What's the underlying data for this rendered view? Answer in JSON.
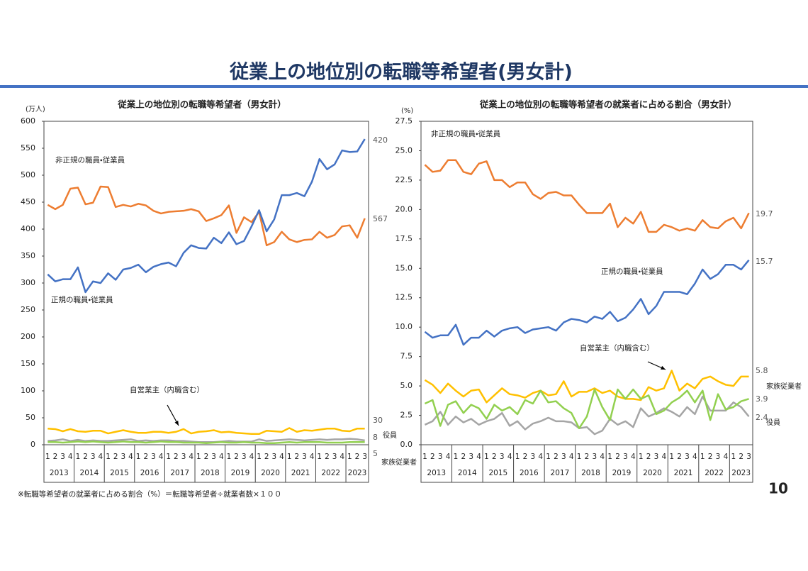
{
  "page": {
    "title": "従業上の地位別の転職等希望者(男女計)",
    "footnote": "※転職等希望者の就業者に占める割合（%）＝転職等希望者÷就業者数×１００",
    "page_number": 10
  },
  "chart_data": [
    {
      "type": "line",
      "title": "従業上の地位別の転職等希望者（男女計）",
      "y_unit": "(万人)",
      "categories": [
        "1",
        "2",
        "3",
        "4",
        "1",
        "2",
        "3",
        "4",
        "1",
        "2",
        "3",
        "4",
        "1",
        "2",
        "3",
        "4",
        "1",
        "2",
        "3",
        "4",
        "1",
        "2",
        "3",
        "4",
        "1",
        "2",
        "3",
        "4",
        "1",
        "2",
        "3",
        "4",
        "1",
        "2",
        "3",
        "4",
        "1",
        "2",
        "3",
        "4",
        "1",
        "2",
        "3"
      ],
      "years": [
        "2013",
        "2014",
        "2015",
        "2016",
        "2017",
        "2018",
        "2019",
        "2020",
        "2021",
        "2022",
        "2023"
      ],
      "ylim": [
        0,
        600
      ],
      "yticks": [
        0,
        50,
        100,
        150,
        200,
        250,
        300,
        350,
        400,
        450,
        500,
        550,
        600
      ],
      "grid": false,
      "series": [
        {
          "name": "非正規の職員・従業員",
          "color": "#ed7d31",
          "values": [
            445,
            437,
            445,
            475,
            477,
            446,
            449,
            479,
            478,
            441,
            445,
            442,
            447,
            444,
            434,
            429,
            432,
            433,
            434,
            437,
            433,
            415,
            420,
            426,
            444,
            393,
            422,
            413,
            432,
            370,
            376,
            395,
            381,
            376,
            380,
            381,
            395,
            384,
            389,
            405,
            407,
            384,
            420
          ]
        },
        {
          "name": "正規の職員・従業員",
          "color": "#4472c4",
          "values": [
            316,
            303,
            307,
            307,
            329,
            283,
            303,
            300,
            318,
            306,
            325,
            328,
            334,
            320,
            330,
            335,
            338,
            331,
            356,
            370,
            365,
            364,
            384,
            374,
            394,
            372,
            378,
            405,
            435,
            396,
            418,
            463,
            463,
            467,
            461,
            488,
            530,
            511,
            520,
            546,
            543,
            544,
            567
          ]
        },
        {
          "name": "自営業主（内職含む）",
          "color": "#ffc000",
          "values": [
            30,
            29,
            25,
            29,
            25,
            24,
            26,
            26,
            21,
            24,
            27,
            24,
            22,
            22,
            24,
            24,
            22,
            24,
            29,
            21,
            24,
            25,
            27,
            23,
            24,
            22,
            21,
            20,
            20,
            26,
            25,
            24,
            31,
            24,
            27,
            26,
            28,
            30,
            30,
            26,
            25,
            30,
            30
          ]
        },
        {
          "name": "役員",
          "color": "#a5a5a5",
          "values": [
            7,
            8,
            10,
            7,
            9,
            7,
            8,
            7,
            7,
            8,
            9,
            10,
            7,
            8,
            7,
            8,
            8,
            7,
            7,
            6,
            5,
            5,
            5,
            6,
            7,
            6,
            6,
            6,
            10,
            7,
            8,
            9,
            10,
            9,
            8,
            9,
            10,
            9,
            10,
            10,
            11,
            10,
            8
          ]
        },
        {
          "name": "家族従業者",
          "color": "#92d050",
          "values": [
            5,
            5,
            4,
            5,
            6,
            5,
            6,
            5,
            4,
            5,
            6,
            5,
            5,
            4,
            5,
            6,
            5,
            5,
            4,
            4,
            4,
            3,
            4,
            5,
            4,
            4,
            5,
            4,
            4,
            3,
            3,
            4,
            5,
            4,
            5,
            5,
            5,
            4,
            4,
            4,
            5,
            5,
            5
          ]
        }
      ]
    },
    {
      "type": "line",
      "title": "従業上の地位別の転職等希望者の就業者に占める割合（男女計）",
      "y_unit": "(%)",
      "categories": [
        "1",
        "2",
        "3",
        "4",
        "1",
        "2",
        "3",
        "4",
        "1",
        "2",
        "3",
        "4",
        "1",
        "2",
        "3",
        "4",
        "1",
        "2",
        "3",
        "4",
        "1",
        "2",
        "3",
        "4",
        "1",
        "2",
        "3",
        "4",
        "1",
        "2",
        "3",
        "4",
        "1",
        "2",
        "3",
        "4",
        "1",
        "2",
        "3",
        "4",
        "1",
        "2",
        "3"
      ],
      "years": [
        "2013",
        "2014",
        "2015",
        "2016",
        "2017",
        "2018",
        "2019",
        "2020",
        "2021",
        "2022",
        "2023"
      ],
      "ylim": [
        0,
        27.5
      ],
      "yticks": [
        {
          "value": 0,
          "label": "0.0"
        },
        {
          "value": 2.5,
          "label": "2.5"
        },
        {
          "value": 5,
          "label": "5.0"
        },
        {
          "value": 7.5,
          "label": "7.5"
        },
        {
          "value": 10,
          "label": "10.0"
        },
        {
          "value": 12.5,
          "label": "12.5"
        },
        {
          "value": 15,
          "label": "15.0"
        },
        {
          "value": 17.5,
          "label": "17.5"
        },
        {
          "value": 20,
          "label": "20.0"
        },
        {
          "value": 22.5,
          "label": "22.5"
        },
        {
          "value": 25,
          "label": "25.0"
        },
        {
          "value": 27.5,
          "label": "27.5"
        }
      ],
      "grid": false,
      "series": [
        {
          "name": "非正規の職員・従業員",
          "color": "#ed7d31",
          "values": [
            23.8,
            23.2,
            23.3,
            24.2,
            24.2,
            23.2,
            23.0,
            23.9,
            24.1,
            22.5,
            22.5,
            21.9,
            22.3,
            22.3,
            21.3,
            20.9,
            21.4,
            21.5,
            21.2,
            21.2,
            20.4,
            19.7,
            19.7,
            19.7,
            20.5,
            18.5,
            19.3,
            18.8,
            19.8,
            18.1,
            18.1,
            18.7,
            18.5,
            18.2,
            18.4,
            18.2,
            19.1,
            18.5,
            18.4,
            19.0,
            19.3,
            18.4,
            19.7
          ]
        },
        {
          "name": "正規の職員・従業員",
          "color": "#4472c4",
          "values": [
            9.6,
            9.1,
            9.3,
            9.3,
            10.2,
            8.5,
            9.1,
            9.1,
            9.7,
            9.2,
            9.7,
            9.9,
            10.0,
            9.5,
            9.8,
            9.9,
            10.0,
            9.7,
            10.4,
            10.7,
            10.6,
            10.4,
            10.9,
            10.7,
            11.3,
            10.5,
            10.8,
            11.5,
            12.4,
            11.1,
            11.8,
            13.0,
            13.0,
            13.0,
            12.8,
            13.7,
            14.9,
            14.1,
            14.5,
            15.3,
            15.3,
            14.9,
            15.7
          ]
        },
        {
          "name": "自営業主（内職含む）",
          "color": "#ffc000",
          "values": [
            5.5,
            5.1,
            4.4,
            5.2,
            4.6,
            4.1,
            4.6,
            4.7,
            3.6,
            4.2,
            4.8,
            4.3,
            4.2,
            4.0,
            4.4,
            4.6,
            4.2,
            4.3,
            5.4,
            4.1,
            4.5,
            4.5,
            4.8,
            4.4,
            4.6,
            4.1,
            3.9,
            3.9,
            3.8,
            4.9,
            4.6,
            4.8,
            6.3,
            4.6,
            5.2,
            4.8,
            5.6,
            5.8,
            5.4,
            5.1,
            5.0,
            5.8,
            5.8
          ]
        },
        {
          "name": "役員",
          "color": "#a5a5a5",
          "values": [
            1.7,
            2.0,
            2.8,
            1.7,
            2.4,
            1.9,
            2.2,
            1.7,
            2.0,
            2.2,
            2.7,
            1.6,
            2.0,
            1.3,
            1.8,
            2.0,
            2.3,
            2.0,
            2.0,
            1.9,
            1.4,
            1.5,
            0.9,
            1.2,
            2.2,
            1.7,
            2.0,
            1.5,
            3.1,
            2.4,
            2.7,
            3.1,
            2.8,
            2.4,
            3.2,
            2.6,
            4.1,
            2.9,
            2.9,
            2.9,
            3.6,
            3.2,
            2.4
          ]
        },
        {
          "name": "家族従業者",
          "color": "#92d050",
          "values": [
            3.5,
            3.8,
            1.6,
            3.4,
            3.7,
            2.7,
            3.4,
            3.1,
            2.2,
            3.4,
            2.9,
            3.2,
            2.6,
            3.8,
            3.5,
            4.6,
            3.6,
            3.7,
            3.1,
            2.7,
            1.4,
            2.4,
            4.7,
            3.2,
            2.1,
            4.7,
            3.9,
            4.7,
            3.9,
            4.2,
            2.6,
            2.9,
            3.6,
            4.0,
            4.6,
            3.6,
            4.6,
            2.1,
            4.3,
            3.0,
            3.2,
            3.7,
            3.9
          ]
        }
      ]
    }
  ]
}
